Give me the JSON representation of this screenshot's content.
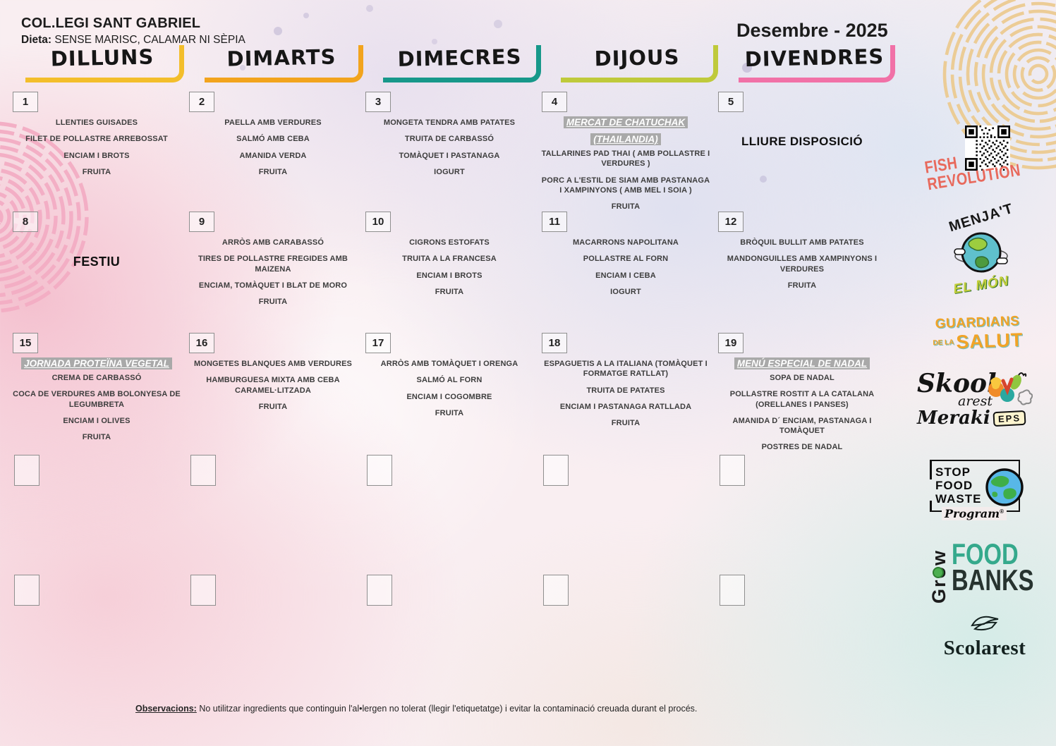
{
  "page": {
    "school": "COL.LEGI SANT GABRIEL",
    "diet_label": "Dieta:",
    "diet_value": " SENSE MARISC, CALAMAR NI SÈPIA",
    "month_title": "Desembre - 2025"
  },
  "day_headers": [
    {
      "label": "DILLUNS",
      "color": "#F3BE2B"
    },
    {
      "label": "DIMARTS",
      "color": "#F2A41D"
    },
    {
      "label": "DIMECRES",
      "color": "#17988A"
    },
    {
      "label": "DIJOUS",
      "color": "#BFCA3B"
    },
    {
      "label": "DIVENDRES",
      "color": "#F171A7"
    }
  ],
  "weeks": [
    {
      "cells": [
        {
          "day": "1",
          "items": [
            "LLENTIES GUISADES",
            "FILET DE POLLASTRE ARREBOSSAT",
            "ENCIAM I BROTS",
            "FRUITA"
          ]
        },
        {
          "day": "2",
          "items": [
            "PAELLA AMB VERDURES",
            "SALMÓ AMB CEBA",
            "AMANIDA VERDA",
            "FRUITA"
          ]
        },
        {
          "day": "3",
          "items": [
            "MONGETA TENDRA AMB PATATES",
            "TRUITA DE CARBASSÓ",
            "TOMÀQUET I PASTANAGA",
            "IOGURT"
          ]
        },
        {
          "day": "4",
          "special": "MERCAT DE CHATUCHAK (THAILANDIA)",
          "items": [
            "TALLARINES PAD THAI ( AMB POLLASTRE I VERDURES )",
            "PORC A L'ESTIL DE SIAM AMB PASTANAGA I XAMPINYONS ( AMB MEL I SOIA )",
            "FRUITA"
          ]
        },
        {
          "day": "5",
          "note": "LLIURE DISPOSICIÓ"
        }
      ]
    },
    {
      "cells": [
        {
          "day": "8",
          "note": "FESTIU"
        },
        {
          "day": "9",
          "items": [
            "ARRÒS AMB CARABASSÓ",
            "TIRES DE POLLASTRE FREGIDES AMB MAIZENA",
            "ENCIAM, TOMÀQUET I BLAT DE MORO",
            "FRUITA"
          ]
        },
        {
          "day": "10",
          "items": [
            "CIGRONS ESTOFATS",
            "TRUITA A LA FRANCESA",
            "ENCIAM I BROTS",
            "FRUITA"
          ]
        },
        {
          "day": "11",
          "items": [
            "MACARRONS NAPOLITANA",
            "POLLASTRE AL FORN",
            "ENCIAM I CEBA",
            "IOGURT"
          ]
        },
        {
          "day": "12",
          "items": [
            "BRÒQUIL BULLIT AMB PATATES",
            "MANDONGUILLES AMB XAMPINYONS I VERDURES",
            "FRUITA"
          ]
        }
      ]
    },
    {
      "cells": [
        {
          "day": "15",
          "special": "JORNADA PROTEÏNA VEGETAL",
          "items": [
            "CREMA DE CARBASSÓ",
            "COCA DE VERDURES AMB BOLONYESA DE LEGUMBRETA",
            "ENCIAM I OLIVES",
            "FRUITA"
          ]
        },
        {
          "day": "16",
          "items": [
            "MONGETES BLANQUES AMB VERDURES",
            "HAMBURGUESA MIXTA AMB CEBA CARAMEL·LITZADA",
            "FRUITA"
          ]
        },
        {
          "day": "17",
          "items": [
            "ARRÒS AMB TOMÀQUET I ORENGA",
            "SALMÓ AL FORN",
            "ENCIAM I COGOMBRE",
            "FRUITA"
          ]
        },
        {
          "day": "18",
          "items": [
            "ESPAGUETIS A LA ITALIANA (TOMÀQUET I FORMATGE RATLLAT)",
            "TRUITA DE PATATES",
            "ENCIAM I PASTANAGA RATLLADA",
            "FRUITA"
          ]
        },
        {
          "day": "19",
          "special": "MENÚ ESPECIAL DE NADAL",
          "items": [
            "SOPA DE NADAL",
            "POLLASTRE ROSTIT A LA CATALANA (ORELLANES I PANSES)",
            "AMANIDA D´ ENCIAM, PASTANAGA I TOMÀQUET",
            "POSTRES DE NADAL"
          ]
        }
      ]
    }
  ],
  "logos": {
    "fish_revolution": {
      "line1": "FISH",
      "line2": "REVOLUTION",
      "color": "#E8695C"
    },
    "menjat_el_mon": {
      "line1": "MENJA'T",
      "line2": "EL MÓN"
    },
    "guardians_salut": {
      "line1": "GUARDIANS",
      "line2": "DE LA",
      "line3": "SALUT"
    },
    "skoolarest": {
      "line1": "Skool",
      "line2": "arest",
      "line3": "Meraki",
      "badge": "EPS"
    },
    "stop_food_waste": {
      "line1": "STOP",
      "line2": "FOOD",
      "line3": "WASTE",
      "line4": "Program",
      "reg": "®"
    },
    "grow_food_banks": {
      "vertical": "Grow",
      "line1": "FOOD",
      "line2": "BANKS",
      "food_color": "#35A98C"
    },
    "scolarest": {
      "name": "Scolarest"
    }
  },
  "footer": {
    "observations_label": "Observacions:",
    "observations_text": " No utilitzar ingredients que continguin l'al•lergen no tolerat (llegir l'etiquetatge) i evitar la contaminació creuada durant el procés."
  }
}
